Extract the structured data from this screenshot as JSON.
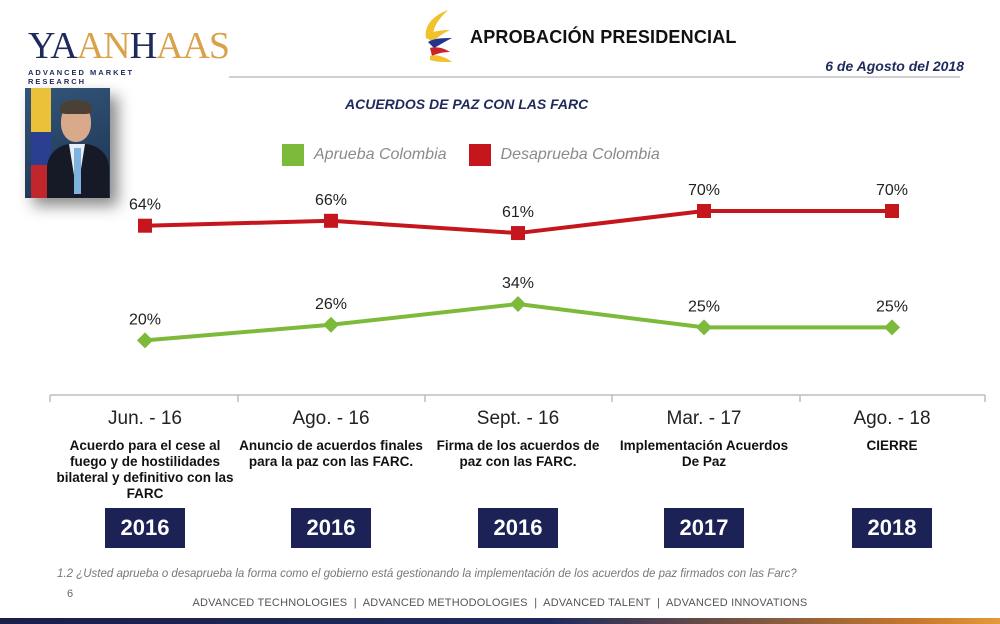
{
  "logo": {
    "word_navy_1": "YA",
    "word_navy_2": "N",
    "word_gold": "AN",
    "word_navy_3": "H",
    "word_gold_2": "AAS",
    "tagline": "ADVANCED MARKET RESEARCH"
  },
  "header": {
    "title": "APROBACIÓN PRESIDENCIAL",
    "date": "6 de Agosto del 2018",
    "emblem_icon": "colombia-emblem-icon"
  },
  "subtitle": "ACUERDOS DE PAZ CON LAS FARC",
  "colors": {
    "approve": "#7dba3c",
    "disapprove": "#c4161c",
    "navy": "#1c2256"
  },
  "chart_data": {
    "type": "line",
    "title": "ACUERDOS DE PAZ CON LAS FARC",
    "categories": [
      "Jun. - 16",
      "Ago. - 16",
      "Sept. - 16",
      "Mar. - 17",
      "Ago. - 18"
    ],
    "series": [
      {
        "name": "Aprueba Colombia",
        "color": "#7dba3c",
        "marker": "diamond",
        "values": [
          20,
          26,
          34,
          25,
          25
        ],
        "labels": [
          "20%",
          "26%",
          "34%",
          "25%",
          "25%"
        ]
      },
      {
        "name": "Desaprueba Colombia",
        "color": "#c4161c",
        "marker": "square",
        "values": [
          64,
          66,
          61,
          70,
          70
        ],
        "labels": [
          "64%",
          "66%",
          "61%",
          "70%",
          "70%"
        ]
      }
    ],
    "legend": "top",
    "xlabel": "",
    "ylabel": "",
    "grid": false,
    "events": [
      "Acuerdo para el cese al fuego y de hostilidades bilateral y definitivo con las FARC",
      "Anuncio de acuerdos finales para la paz con las FARC.",
      "Firma de los acuerdos de paz con las FARC.",
      "Implementación Acuerdos De Paz",
      "CIERRE"
    ],
    "years": [
      "2016",
      "2016",
      "2016",
      "2017",
      "2018"
    ]
  },
  "question": "1.2 ¿Usted aprueba o desaprueba la forma como el gobierno está gestionando la implementación de los acuerdos de paz firmados con las Farc?",
  "page_number": "6",
  "footer": "ADVANCED TECHNOLOGIES  |  ADVANCED METHODOLOGIES  |  ADVANCED TALENT  |  ADVANCED INNOVATIONS"
}
